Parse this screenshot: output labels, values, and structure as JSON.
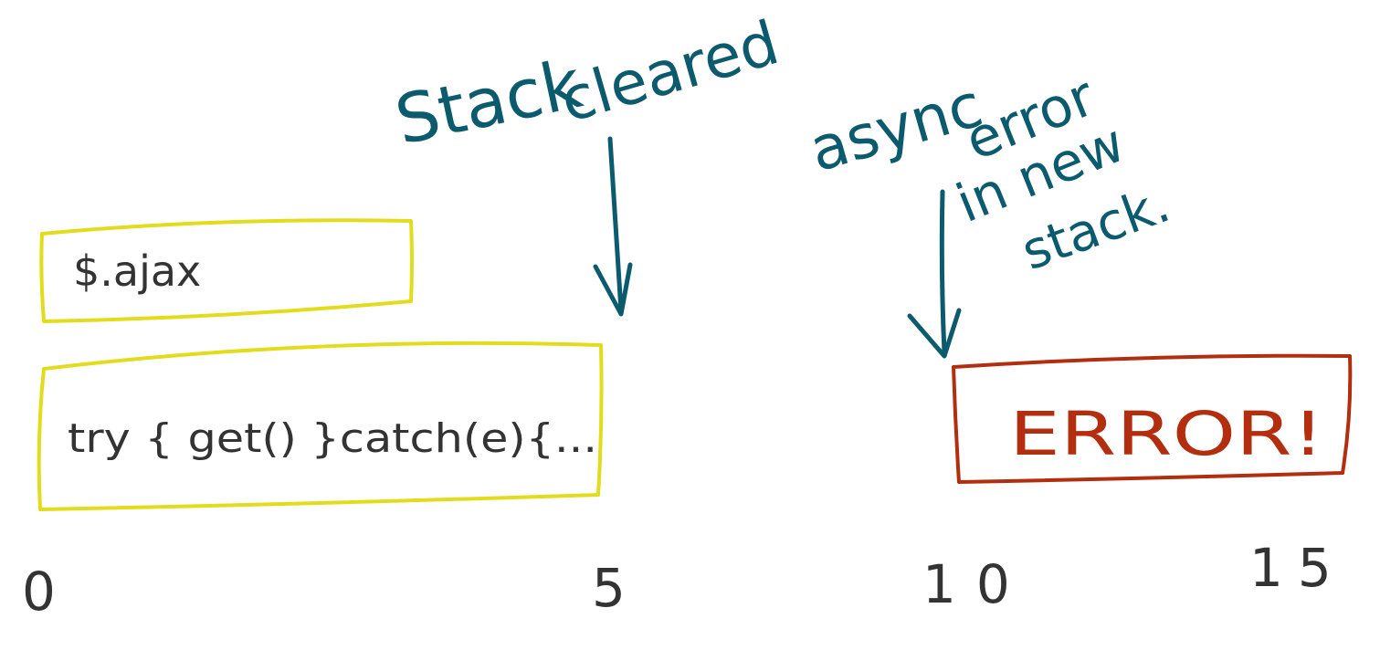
{
  "diagram": {
    "stack_frames": [
      {
        "id": "ajax",
        "label": "$.ajax"
      },
      {
        "id": "try",
        "label": "try { get() }catch(e){..."
      },
      {
        "id": "error",
        "label": "ERROR!"
      }
    ],
    "annotations": [
      {
        "id": "stack-cleared",
        "lines": [
          "Stack",
          "cleared"
        ]
      },
      {
        "id": "async-error",
        "lines": [
          "async",
          "error",
          "in new",
          "stack."
        ]
      }
    ],
    "timeline_ticks": [
      "0",
      "5",
      "10",
      "15"
    ],
    "colors": {
      "stack_box": "#e3dc1c",
      "error_box": "#b32d0f",
      "annotation": "#0b5a6e",
      "text": "#333333"
    }
  }
}
